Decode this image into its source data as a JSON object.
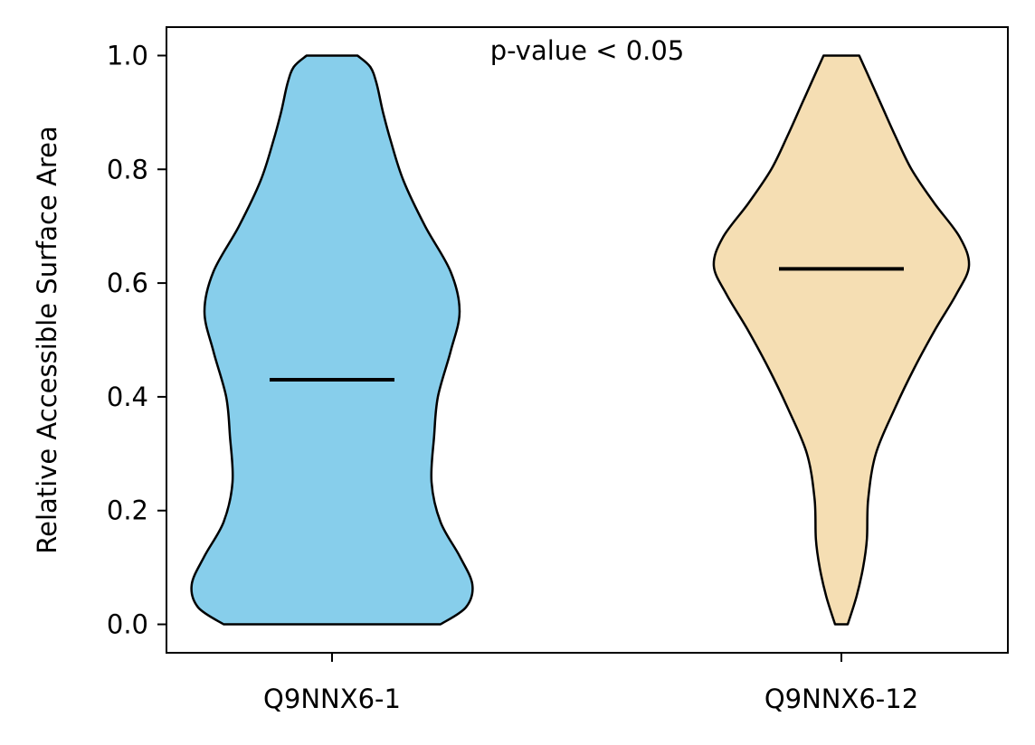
{
  "chart_data": {
    "type": "violin",
    "annotation": "p-value < 0.05",
    "xlabel": "",
    "ylabel": "Relative Accessible Surface Area",
    "ylim": [
      -0.05,
      1.05
    ],
    "yticks": [
      "0.0",
      "0.2",
      "0.4",
      "0.6",
      "0.8",
      "1.0"
    ],
    "grid": false,
    "categories": [
      "Q9NNX6-1",
      "Q9NNX6-12"
    ],
    "series": [
      {
        "category": "Q9NNX6-1",
        "color": "#87CEEB",
        "median": 0.43,
        "min": 0.0,
        "max": 1.0,
        "density": [
          [
            0.0,
            0.85
          ],
          [
            0.03,
            1.05
          ],
          [
            0.07,
            1.1
          ],
          [
            0.12,
            1.0
          ],
          [
            0.18,
            0.85
          ],
          [
            0.25,
            0.78
          ],
          [
            0.33,
            0.8
          ],
          [
            0.4,
            0.83
          ],
          [
            0.48,
            0.93
          ],
          [
            0.55,
            1.0
          ],
          [
            0.62,
            0.93
          ],
          [
            0.7,
            0.73
          ],
          [
            0.78,
            0.56
          ],
          [
            0.85,
            0.46
          ],
          [
            0.9,
            0.4
          ],
          [
            0.95,
            0.35
          ],
          [
            0.98,
            0.3
          ],
          [
            1.0,
            0.2
          ]
        ]
      },
      {
        "category": "Q9NNX6-12",
        "color": "#F5DEB3",
        "median": 0.625,
        "min": 0.0,
        "max": 1.0,
        "density": [
          [
            0.0,
            0.05
          ],
          [
            0.05,
            0.12
          ],
          [
            0.1,
            0.17
          ],
          [
            0.15,
            0.2
          ],
          [
            0.22,
            0.21
          ],
          [
            0.3,
            0.27
          ],
          [
            0.38,
            0.42
          ],
          [
            0.45,
            0.57
          ],
          [
            0.52,
            0.74
          ],
          [
            0.58,
            0.9
          ],
          [
            0.63,
            1.0
          ],
          [
            0.68,
            0.93
          ],
          [
            0.74,
            0.73
          ],
          [
            0.8,
            0.55
          ],
          [
            0.86,
            0.42
          ],
          [
            0.92,
            0.3
          ],
          [
            0.97,
            0.2
          ],
          [
            1.0,
            0.14
          ]
        ]
      }
    ]
  }
}
